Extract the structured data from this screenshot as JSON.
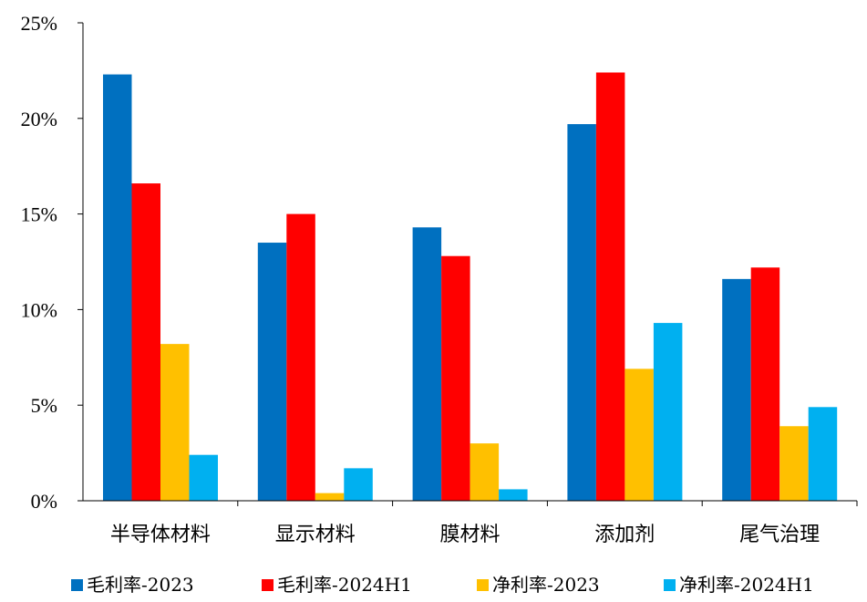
{
  "chart_data": {
    "type": "bar",
    "categories": [
      "半导体材料",
      "显示材料",
      "膜材料",
      "添加剂",
      "尾气治理"
    ],
    "series": [
      {
        "name": "毛利率-2023",
        "color": "#0070C0",
        "values": [
          22.3,
          13.5,
          14.3,
          19.7,
          11.6
        ]
      },
      {
        "name": "毛利率-2024H1",
        "color": "#FF0000",
        "values": [
          16.6,
          15.0,
          12.8,
          22.4,
          12.2
        ]
      },
      {
        "name": "净利率-2023",
        "color": "#FFC000",
        "values": [
          8.2,
          0.4,
          3.0,
          6.9,
          3.9
        ]
      },
      {
        "name": "净利率-2024H1",
        "color": "#00B0F0",
        "values": [
          2.4,
          1.7,
          0.6,
          9.3,
          4.9
        ]
      }
    ],
    "y_ticks": [
      "0%",
      "5%",
      "10%",
      "15%",
      "20%",
      "25%"
    ],
    "ylim": [
      0,
      25
    ],
    "grid": false,
    "legend": "bottom"
  }
}
